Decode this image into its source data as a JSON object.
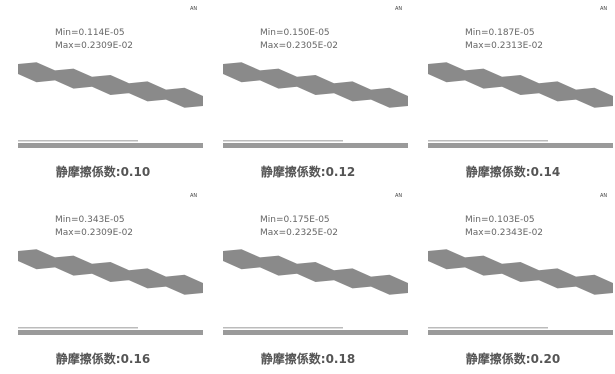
{
  "panels": [
    {
      "min": "Min=0.114E-05",
      "max": "Max=0.2309E-02",
      "caption": "静摩擦係数:0.10",
      "tag": "AN"
    },
    {
      "min": "Min=0.150E-05",
      "max": "Max=0.2305E-02",
      "caption": "静摩擦係数:0.12",
      "tag": "AN"
    },
    {
      "min": "Min=0.187E-05",
      "max": "Max=0.2313E-02",
      "caption": "静摩擦係数:0.14",
      "tag": "AN"
    },
    {
      "min": "Min=0.343E-05",
      "max": "Max=0.2309E-02",
      "caption": "静摩擦係数:0.16",
      "tag": "AN"
    },
    {
      "min": "Min=0.175E-05",
      "max": "Max=0.2325E-02",
      "caption": "静摩擦係数:0.18",
      "tag": "AN"
    },
    {
      "min": "Min=0.103E-05",
      "max": "Max=0.2343E-02",
      "caption": "静摩擦係数:0.20",
      "tag": "AN"
    }
  ]
}
